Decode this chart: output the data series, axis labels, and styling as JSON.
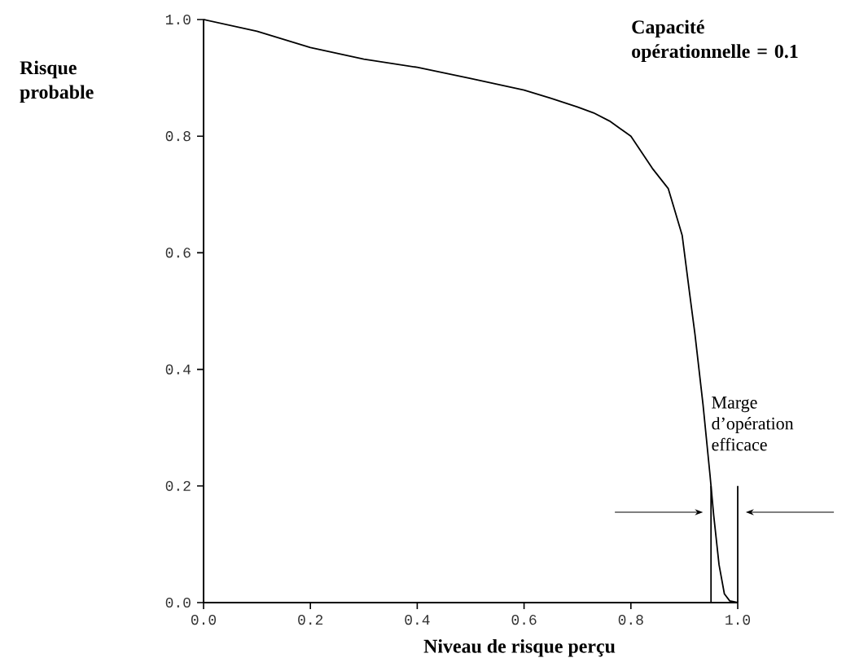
{
  "chart_data": {
    "type": "line",
    "xlabel": "Niveau de risque perçu",
    "ylabel": "Risque probable",
    "x": [
      0,
      0.1,
      0.2,
      0.3,
      0.4,
      0.5,
      0.6,
      0.65,
      0.7,
      0.73,
      0.76,
      0.8,
      0.84,
      0.87,
      0.896,
      0.91,
      0.92,
      0.935,
      0.948,
      0.955,
      0.965,
      0.975,
      0.985,
      1.0
    ],
    "series": [
      {
        "color": "#000000",
        "values": [
          1.0,
          0.98,
          0.952,
          0.932,
          0.918,
          0.899,
          0.879,
          0.865,
          0.85,
          0.84,
          0.826,
          0.8,
          0.745,
          0.71,
          0.63,
          0.53,
          0.46,
          0.34,
          0.22,
          0.15,
          0.065,
          0.015,
          0.003,
          0
        ]
      }
    ],
    "xlim": [
      0,
      1.0
    ],
    "ylim": [
      0,
      1.0
    ],
    "xticks": [
      {
        "value": 0,
        "label": "0.0"
      },
      0.2,
      0.4,
      0.6,
      0.8,
      {
        "value": 1.0,
        "label": "1.0"
      }
    ],
    "yticks": [
      {
        "value": 0,
        "label": "0.0"
      },
      0.2,
      0.4,
      0.6,
      0.8,
      {
        "value": 1.0,
        "label": "1.0"
      }
    ],
    "annotations": [
      "**Capacité opérationnelle = 0.1**"
    ],
    "ref_lines": [
      {
        "axis": "x",
        "value": 0.95,
        "label": "Marge d’opération efficace"
      },
      {
        "axis": "x",
        "value": 1.0
      }
    ],
    "marker": "none",
    "line_style": "solid"
  }
}
